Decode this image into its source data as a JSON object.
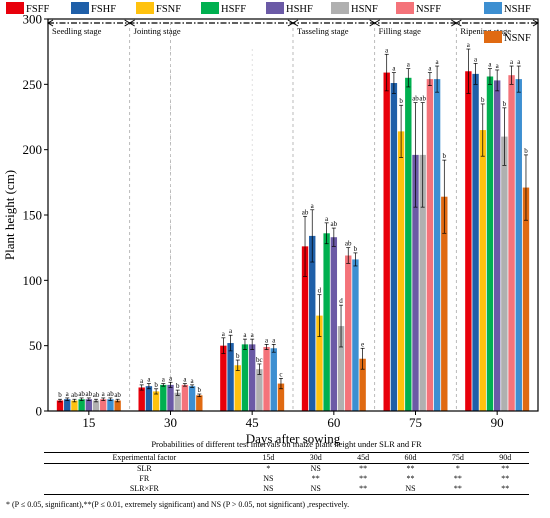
{
  "chart_data": {
    "type": "bar",
    "xlabel": "Days after sowing",
    "ylabel": "Plant height (cm)",
    "ylim": [
      0,
      300
    ],
    "yticks": [
      0,
      50,
      100,
      150,
      200,
      250,
      300
    ],
    "categories": [
      "15",
      "30",
      "45",
      "60",
      "75",
      "90"
    ],
    "legend_position": "top",
    "stages": [
      "Seedling stage",
      "Jointing stage",
      "Tasseling stage",
      "Filling stage",
      "Ripening stage"
    ],
    "series": [
      {
        "name": "FSFF",
        "color": "#e8000b",
        "values": [
          8,
          18,
          50,
          126,
          259,
          260
        ],
        "errors": [
          1,
          2,
          6,
          23,
          14,
          17
        ],
        "letters": [
          "b",
          "a",
          "a",
          "ab",
          "a",
          "a"
        ]
      },
      {
        "name": "FSHF",
        "color": "#1f5fa8",
        "values": [
          9,
          19,
          52,
          134,
          251,
          258
        ],
        "errors": [
          1,
          2,
          6,
          20,
          8,
          8
        ],
        "letters": [
          "a",
          "a",
          "a",
          "a",
          "a",
          "a"
        ]
      },
      {
        "name": "FSNF",
        "color": "#ffc20e",
        "values": [
          8,
          15,
          35,
          73,
          214,
          215
        ],
        "errors": [
          1,
          2,
          4,
          16,
          20,
          20
        ],
        "letters": [
          "ab",
          "b",
          "b",
          "d",
          "b",
          "b"
        ]
      },
      {
        "name": "HSFF",
        "color": "#00b050",
        "values": [
          9,
          20,
          51,
          136,
          255,
          256
        ],
        "errors": [
          1,
          1,
          4,
          8,
          7,
          6
        ],
        "letters": [
          "ab",
          "a",
          "a",
          "a",
          "a",
          "a"
        ]
      },
      {
        "name": "HSHF",
        "color": "#6b5aa6",
        "values": [
          9,
          20,
          51,
          133,
          196,
          253
        ],
        "errors": [
          1,
          2,
          4,
          7,
          40,
          8
        ],
        "letters": [
          "ab",
          "a",
          "a",
          "ab",
          "ab",
          "a"
        ]
      },
      {
        "name": "HSNF",
        "color": "#b0b0b0",
        "values": [
          8,
          14,
          32,
          65,
          196,
          210
        ],
        "errors": [
          1,
          2,
          4,
          16,
          40,
          22
        ],
        "letters": [
          "ab",
          "b",
          "bc",
          "d",
          "ab",
          "b"
        ]
      },
      {
        "name": "NSFF",
        "color": "#f4737a",
        "values": [
          9,
          20,
          49,
          119,
          254,
          257
        ],
        "errors": [
          1,
          1,
          2,
          6,
          5,
          7
        ],
        "letters": [
          "a",
          "a",
          "a",
          "ab",
          "a",
          "a"
        ]
      },
      {
        "name": "NSHF",
        "color": "#3d8fd1",
        "values": [
          9,
          19,
          48,
          116,
          254,
          254
        ],
        "errors": [
          1,
          1,
          3,
          5,
          10,
          10
        ],
        "letters": [
          "ab",
          "a",
          "a",
          "b",
          "a",
          "a"
        ]
      },
      {
        "name": "NSNF",
        "color": "#e06a12",
        "values": [
          8,
          12,
          21,
          40,
          164,
          171
        ],
        "errors": [
          1,
          1,
          4,
          8,
          28,
          25
        ],
        "letters": [
          "ab",
          "b",
          "c",
          "e",
          "b",
          "b"
        ]
      }
    ]
  },
  "table": {
    "title": "Probabilities of  different test intervals on maize plant height under SLR and FR",
    "headers": [
      "Experimental factor",
      "15d",
      "30d",
      "45d",
      "60d",
      "75d",
      "90d"
    ],
    "rows": [
      [
        "SLR",
        "*",
        "NS",
        "**",
        "**",
        "*",
        "**"
      ],
      [
        "FR",
        "NS",
        "**",
        "**",
        "**",
        "**",
        "**"
      ],
      [
        "SLR×FR",
        "NS",
        "NS",
        "**",
        "NS",
        "**",
        "**"
      ]
    ]
  },
  "footnote": "* (P ≤ 0.05, significant),**(P ≤ 0.01, extremely significant) and NS (P > 0.05, not significant) ,respectively."
}
